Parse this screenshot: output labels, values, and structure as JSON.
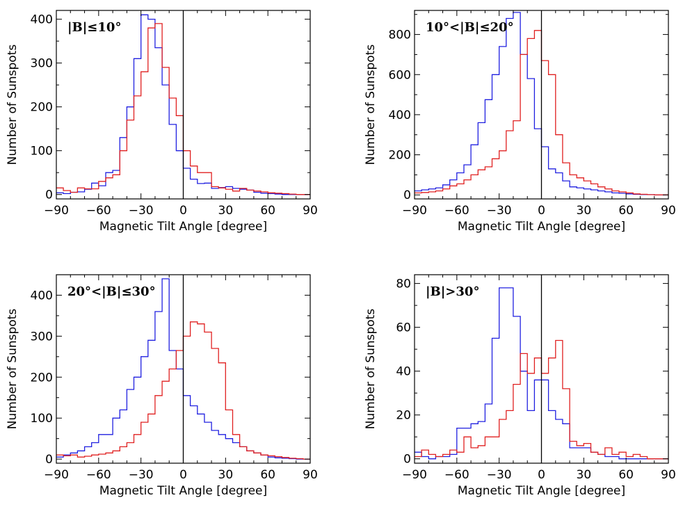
{
  "figure": {
    "xlabel": "Magnetic Tilt Angle [degree]",
    "ylabel": "Number of Sunspots"
  },
  "colors": {
    "series_a": "#2020e0",
    "series_b": "#e02020",
    "axes": "#000000"
  },
  "chart_data": [
    {
      "type": "histogram-step",
      "title": "|B|≤10°",
      "xlabel": "Magnetic Tilt Angle [degree]",
      "ylabel": "Number of Sunspots",
      "xlim": [
        -90,
        90
      ],
      "ylim": [
        -10,
        420
      ],
      "xticks": [
        -90,
        -60,
        -30,
        0,
        30,
        60,
        90
      ],
      "yticks": [
        0,
        100,
        200,
        300,
        400
      ],
      "bin_width": 5,
      "bin_start": -90,
      "series": [
        {
          "name": "blue",
          "color": "#2020e0",
          "values": [
            4,
            2,
            5,
            6,
            12,
            26,
            20,
            50,
            55,
            130,
            200,
            310,
            410,
            400,
            335,
            250,
            160,
            100,
            60,
            35,
            25,
            26,
            14,
            16,
            18,
            14,
            12,
            10,
            5,
            3,
            2,
            1,
            0,
            0,
            0,
            0
          ]
        },
        {
          "name": "red",
          "color": "#e02020",
          "values": [
            15,
            9,
            5,
            15,
            13,
            13,
            30,
            38,
            45,
            100,
            170,
            225,
            280,
            380,
            390,
            290,
            220,
            180,
            100,
            65,
            50,
            50,
            18,
            15,
            12,
            8,
            14,
            10,
            8,
            6,
            4,
            3,
            2,
            1,
            0,
            0
          ]
        }
      ]
    },
    {
      "type": "histogram-step",
      "title": "10°<|B|≤20°",
      "xlabel": "Magnetic Tilt Angle [degree]",
      "ylabel": "Number of Sunspots",
      "xlim": [
        -90,
        90
      ],
      "ylim": [
        -20,
        920
      ],
      "xticks": [
        -90,
        -60,
        -30,
        0,
        30,
        60,
        90
      ],
      "yticks": [
        0,
        200,
        400,
        600,
        800
      ],
      "bin_width": 5,
      "bin_start": -90,
      "series": [
        {
          "name": "blue",
          "color": "#2020e0",
          "values": [
            20,
            25,
            30,
            35,
            50,
            75,
            110,
            150,
            250,
            360,
            475,
            600,
            740,
            880,
            910,
            700,
            580,
            330,
            240,
            130,
            110,
            70,
            40,
            35,
            30,
            25,
            20,
            15,
            10,
            8,
            5,
            3,
            2,
            1,
            0,
            0
          ]
        },
        {
          "name": "red",
          "color": "#e02020",
          "values": [
            10,
            12,
            15,
            20,
            30,
            45,
            55,
            75,
            100,
            125,
            140,
            180,
            220,
            320,
            370,
            700,
            780,
            820,
            670,
            600,
            300,
            160,
            100,
            85,
            70,
            55,
            40,
            30,
            20,
            15,
            10,
            5,
            3,
            1,
            0,
            0
          ]
        }
      ]
    },
    {
      "type": "histogram-step",
      "title": "20°<|B|≤30°",
      "xlabel": "Magnetic Tilt Angle [degree]",
      "ylabel": "Number of Sunspots",
      "xlim": [
        -90,
        90
      ],
      "ylim": [
        -10,
        450
      ],
      "xticks": [
        -90,
        -60,
        -30,
        0,
        30,
        60,
        90
      ],
      "yticks": [
        0,
        100,
        200,
        300,
        400
      ],
      "bin_width": 5,
      "bin_start": -90,
      "series": [
        {
          "name": "blue",
          "color": "#2020e0",
          "values": [
            5,
            10,
            15,
            20,
            30,
            40,
            60,
            60,
            100,
            120,
            170,
            200,
            250,
            290,
            360,
            440,
            265,
            220,
            155,
            130,
            110,
            90,
            70,
            60,
            50,
            40,
            30,
            20,
            15,
            10,
            5,
            3,
            2,
            1,
            0,
            0
          ]
        },
        {
          "name": "red",
          "color": "#e02020",
          "values": [
            10,
            8,
            10,
            5,
            7,
            10,
            12,
            15,
            20,
            30,
            40,
            60,
            90,
            110,
            155,
            190,
            220,
            265,
            300,
            335,
            330,
            310,
            270,
            235,
            120,
            60,
            30,
            20,
            15,
            10,
            8,
            6,
            4,
            2,
            1,
            0
          ]
        }
      ]
    },
    {
      "type": "histogram-step",
      "title": "|B|>30°",
      "xlabel": "Magnetic Tilt Angle [degree]",
      "ylabel": "Number of Sunspots",
      "xlim": [
        -90,
        90
      ],
      "ylim": [
        -2,
        84
      ],
      "xticks": [
        -90,
        -60,
        -30,
        0,
        30,
        60,
        90
      ],
      "yticks": [
        0,
        20,
        40,
        60,
        80
      ],
      "bin_width": 5,
      "bin_start": -90,
      "series": [
        {
          "name": "blue",
          "color": "#2020e0",
          "values": [
            3,
            1,
            0,
            1,
            1,
            2,
            14,
            14,
            16,
            17,
            25,
            55,
            78,
            78,
            65,
            40,
            22,
            36,
            36,
            22,
            18,
            16,
            5,
            5,
            5,
            3,
            2,
            1,
            1,
            0,
            0,
            0,
            0,
            0,
            0,
            0
          ]
        },
        {
          "name": "red",
          "color": "#e02020",
          "values": [
            1,
            4,
            2,
            1,
            2,
            4,
            3,
            10,
            5,
            6,
            10,
            10,
            18,
            22,
            34,
            48,
            39,
            46,
            39,
            46,
            54,
            32,
            8,
            6,
            7,
            3,
            2,
            5,
            2,
            3,
            1,
            2,
            1,
            0,
            0,
            0
          ]
        }
      ]
    }
  ]
}
